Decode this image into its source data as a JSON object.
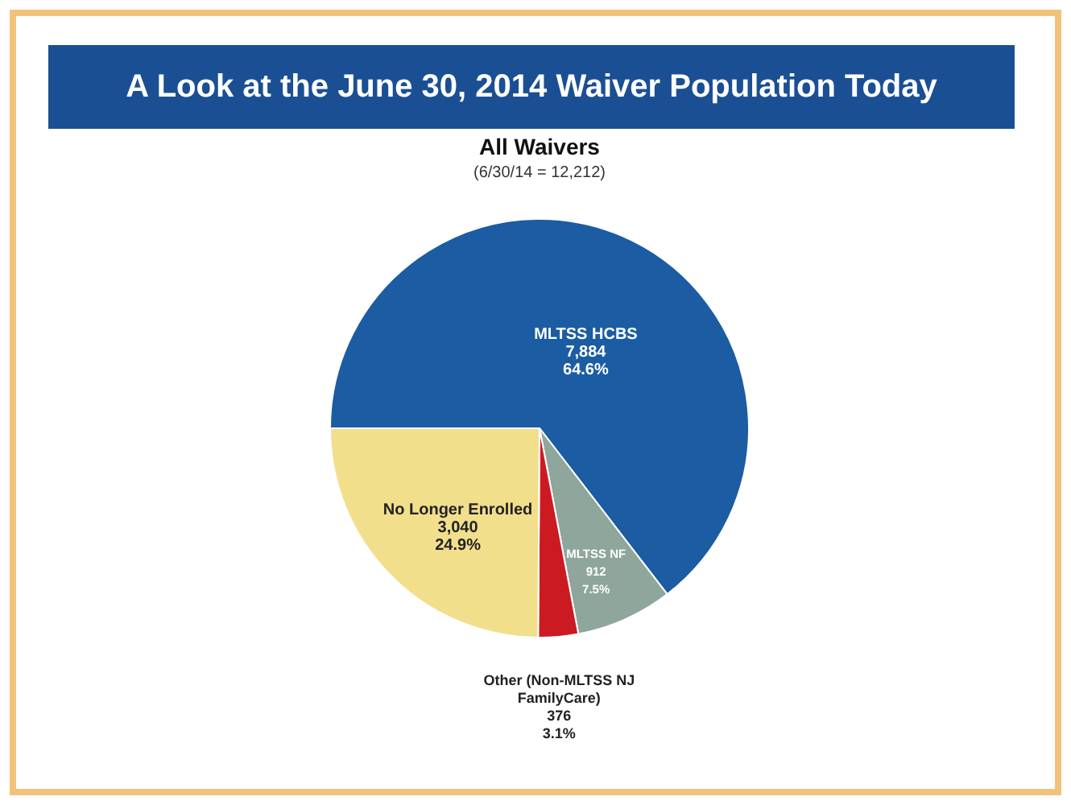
{
  "chart_data": {
    "type": "pie",
    "title": "A Look at the June 30, 2014 Waiver Population Today",
    "subtitle": "All Waivers",
    "annotations": [
      "(6/30/14 = 12,212)"
    ],
    "categories": [
      "MLTSS HCBS",
      "MLTSS NF",
      "Other (Non-MLTSS NJ FamilyCare)",
      "No Longer Enrolled"
    ],
    "values": [
      7884,
      912,
      376,
      3040
    ],
    "colors": [
      "#1b5ca3",
      "#8ea69c",
      "#cc1a22",
      "#f1df8c"
    ],
    "value_labels": [
      "7,884\n64.6%",
      "912\n7.5%",
      "376\n3.1%",
      "3,040\n24.9%"
    ],
    "legend": false
  }
}
